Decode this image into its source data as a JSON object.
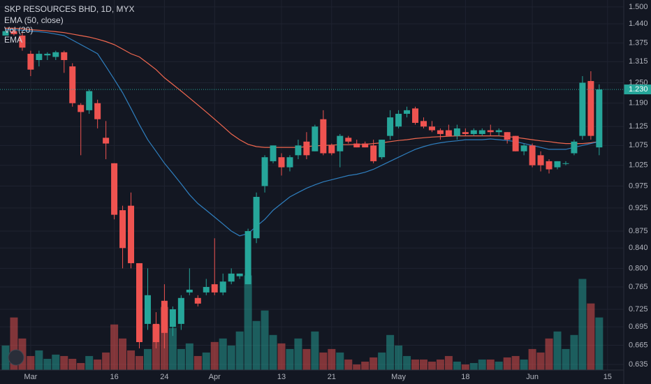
{
  "chart_data": {
    "type": "candlestick",
    "title": "SKP RESOURCES BHD, 1D, MYX",
    "legend": [
      "EMA (50, close)",
      "Vol (20)",
      "EMA"
    ],
    "log_scale": true,
    "grid": true,
    "up_color": "#26a69a",
    "down_color": "#ef5350",
    "categories": [
      null,
      null,
      null,
      "Mar",
      null,
      null,
      null,
      null,
      null,
      null,
      null,
      null,
      null,
      "16",
      null,
      null,
      null,
      null,
      null,
      "24",
      null,
      null,
      null,
      null,
      null,
      "Apr",
      null,
      null,
      null,
      null,
      null,
      null,
      null,
      "13",
      null,
      null,
      null,
      null,
      null,
      "21",
      null,
      null,
      null,
      null,
      null,
      null,
      null,
      "May",
      null,
      null,
      null,
      null,
      null,
      null,
      null,
      "18",
      null,
      null,
      null,
      null,
      null,
      null,
      null,
      "Jun",
      null,
      null,
      null,
      null,
      null,
      null,
      null,
      null,
      "15"
    ],
    "open": [
      1.4,
      1.415,
      1.4,
      1.34,
      1.32,
      1.335,
      1.33,
      1.345,
      1.3,
      1.185,
      1.17,
      1.19,
      1.095,
      1.03,
      0.92,
      0.93,
      0.81,
      0.7,
      0.7,
      0.74,
      0.695,
      0.7,
      0.755,
      0.745,
      0.755,
      0.77,
      0.755,
      0.775,
      0.785,
      0.77,
      0.86,
      0.975,
      1.035,
      1.045,
      1.02,
      1.05,
      1.085,
      1.06,
      1.145,
      1.075,
      1.06,
      1.095,
      1.08,
      1.08,
      1.075,
      1.045,
      1.1,
      1.125,
      1.16,
      1.175,
      1.14,
      1.125,
      1.115,
      1.115,
      1.1,
      1.11,
      1.105,
      1.105,
      1.115,
      1.11,
      1.11,
      1.1,
      1.06,
      1.075,
      1.05,
      1.035,
      1.02,
      1.03,
      1.055,
      1.1,
      1.255,
      1.07,
      null
    ],
    "high": [
      1.42,
      1.42,
      1.41,
      1.35,
      1.35,
      1.345,
      1.35,
      1.35,
      1.31,
      1.19,
      1.23,
      1.2,
      1.14,
      1.03,
      0.93,
      0.96,
      0.81,
      0.8,
      0.72,
      0.77,
      0.73,
      0.75,
      0.8,
      0.75,
      0.78,
      0.86,
      0.79,
      0.8,
      0.79,
      0.88,
      0.96,
      1.05,
      1.075,
      1.055,
      1.05,
      1.09,
      1.11,
      1.13,
      1.17,
      1.08,
      1.105,
      1.1,
      1.09,
      1.085,
      1.09,
      1.09,
      1.17,
      1.17,
      1.18,
      1.18,
      1.15,
      1.14,
      1.12,
      1.13,
      1.13,
      1.12,
      1.12,
      1.12,
      1.13,
      1.12,
      1.11,
      1.1,
      1.08,
      1.08,
      1.06,
      1.04,
      1.035,
      1.035,
      1.09,
      1.27,
      1.285,
      1.245,
      null
    ],
    "low": [
      1.4,
      1.4,
      1.35,
      1.27,
      1.3,
      1.32,
      1.32,
      1.28,
      1.18,
      1.05,
      1.16,
      1.12,
      1.04,
      0.9,
      0.8,
      0.8,
      0.66,
      0.69,
      0.66,
      0.66,
      0.68,
      0.69,
      0.75,
      0.73,
      0.75,
      0.75,
      0.75,
      0.77,
      0.78,
      0.77,
      0.85,
      0.96,
      1.03,
      1.0,
      1.01,
      1.04,
      1.04,
      1.06,
      1.05,
      1.05,
      1.02,
      1.08,
      1.07,
      1.07,
      1.03,
      1.04,
      1.09,
      1.12,
      1.15,
      1.13,
      1.12,
      1.11,
      1.09,
      1.1,
      1.09,
      1.1,
      1.1,
      1.1,
      1.1,
      1.1,
      1.08,
      1.06,
      1.05,
      1.02,
      1.01,
      1.005,
      1.015,
      1.025,
      1.05,
      1.09,
      1.09,
      1.05,
      null
    ],
    "close": [
      1.415,
      1.405,
      1.36,
      1.29,
      1.34,
      1.34,
      1.345,
      1.32,
      1.19,
      1.165,
      1.225,
      1.145,
      1.08,
      0.91,
      0.84,
      0.81,
      0.67,
      0.75,
      0.67,
      0.685,
      0.725,
      0.745,
      0.76,
      0.735,
      0.765,
      0.755,
      0.775,
      0.79,
      0.79,
      0.875,
      0.95,
      1.045,
      1.075,
      1.02,
      1.045,
      1.075,
      1.05,
      1.125,
      1.055,
      1.055,
      1.1,
      1.085,
      1.07,
      1.07,
      1.035,
      1.09,
      1.15,
      1.16,
      1.17,
      1.135,
      1.125,
      1.115,
      1.105,
      1.1,
      1.12,
      1.105,
      1.115,
      1.115,
      1.11,
      1.115,
      1.09,
      1.06,
      1.075,
      1.025,
      1.025,
      1.015,
      1.035,
      1.03,
      1.085,
      1.25,
      1.1,
      1.23,
      null
    ],
    "volume": [
      35,
      75,
      45,
      20,
      28,
      16,
      22,
      20,
      16,
      10,
      20,
      15,
      25,
      65,
      45,
      28,
      20,
      30,
      65,
      90,
      60,
      30,
      38,
      20,
      25,
      40,
      45,
      35,
      55,
      135,
      70,
      85,
      50,
      38,
      30,
      45,
      30,
      55,
      25,
      30,
      25,
      15,
      8,
      12,
      18,
      25,
      50,
      35,
      20,
      15,
      15,
      12,
      15,
      20,
      12,
      8,
      10,
      15,
      15,
      12,
      18,
      20,
      15,
      30,
      25,
      45,
      55,
      30,
      50,
      130,
      95,
      75,
      null
    ],
    "vol_ylim": [
      0,
      528
    ],
    "series": [
      {
        "name": "EMA (50, close)",
        "color": "#f0674f",
        "values": [
          1.425,
          1.425,
          1.423,
          1.42,
          1.418,
          1.416,
          1.413,
          1.41,
          1.405,
          1.4,
          1.395,
          1.388,
          1.38,
          1.37,
          1.355,
          1.34,
          1.33,
          1.31,
          1.29,
          1.265,
          1.245,
          1.225,
          1.205,
          1.185,
          1.165,
          1.145,
          1.125,
          1.105,
          1.09,
          1.078,
          1.072,
          1.07,
          1.07,
          1.07,
          1.07,
          1.07,
          1.072,
          1.074,
          1.075,
          1.076,
          1.077,
          1.077,
          1.078,
          1.078,
          1.08,
          1.082,
          1.085,
          1.088,
          1.09,
          1.093,
          1.095,
          1.097,
          1.098,
          1.099,
          1.1,
          1.1,
          1.1,
          1.1,
          1.1,
          1.1,
          1.098,
          1.096,
          1.093,
          1.09,
          1.087,
          1.085,
          1.082,
          1.08,
          1.08,
          1.08,
          1.082,
          1.085,
          null
        ]
      },
      {
        "name": "EMA",
        "color": "#2f7fbf",
        "values": [
          1.42,
          1.42,
          1.418,
          1.415,
          1.413,
          1.41,
          1.405,
          1.4,
          1.385,
          1.37,
          1.355,
          1.34,
          1.3,
          1.26,
          1.22,
          1.175,
          1.13,
          1.09,
          1.06,
          1.03,
          1.005,
          0.98,
          0.955,
          0.935,
          0.92,
          0.905,
          0.89,
          0.875,
          0.865,
          0.87,
          0.885,
          0.9,
          0.92,
          0.935,
          0.95,
          0.96,
          0.97,
          0.978,
          0.985,
          0.99,
          0.995,
          1.0,
          1.003,
          1.008,
          1.015,
          1.025,
          1.035,
          1.045,
          1.055,
          1.065,
          1.072,
          1.078,
          1.082,
          1.085,
          1.087,
          1.09,
          1.09,
          1.09,
          1.092,
          1.09,
          1.088,
          1.085,
          1.08,
          1.075,
          1.07,
          1.065,
          1.065,
          1.065,
          1.07,
          1.075,
          1.08,
          1.085,
          null
        ]
      }
    ],
    "ylim": [
      0.6265,
      1.525
    ],
    "yticks": [
      {
        "value": 1.5,
        "label": "1.500"
      },
      {
        "value": 1.44,
        "label": "1.440"
      },
      {
        "value": 1.375,
        "label": "1.375"
      },
      {
        "value": 1.315,
        "label": "1.315"
      },
      {
        "value": 1.25,
        "label": "1.250"
      },
      {
        "value": 1.19,
        "label": "1.190"
      },
      {
        "value": 1.125,
        "label": "1.125"
      },
      {
        "value": 1.075,
        "label": "1.075"
      },
      {
        "value": 1.025,
        "label": "1.025"
      },
      {
        "value": 0.975,
        "label": "0.975"
      },
      {
        "value": 0.925,
        "label": "0.925"
      },
      {
        "value": 0.875,
        "label": "0.875"
      },
      {
        "value": 0.84,
        "label": "0.840"
      },
      {
        "value": 0.8,
        "label": "0.800"
      },
      {
        "value": 0.765,
        "label": "0.765"
      },
      {
        "value": 0.725,
        "label": "0.725"
      },
      {
        "value": 0.695,
        "label": "0.695"
      },
      {
        "value": 0.665,
        "label": "0.665"
      },
      {
        "value": 0.635,
        "label": "0.635"
      }
    ],
    "last_price": {
      "value": 1.23,
      "label": "1.230"
    }
  }
}
